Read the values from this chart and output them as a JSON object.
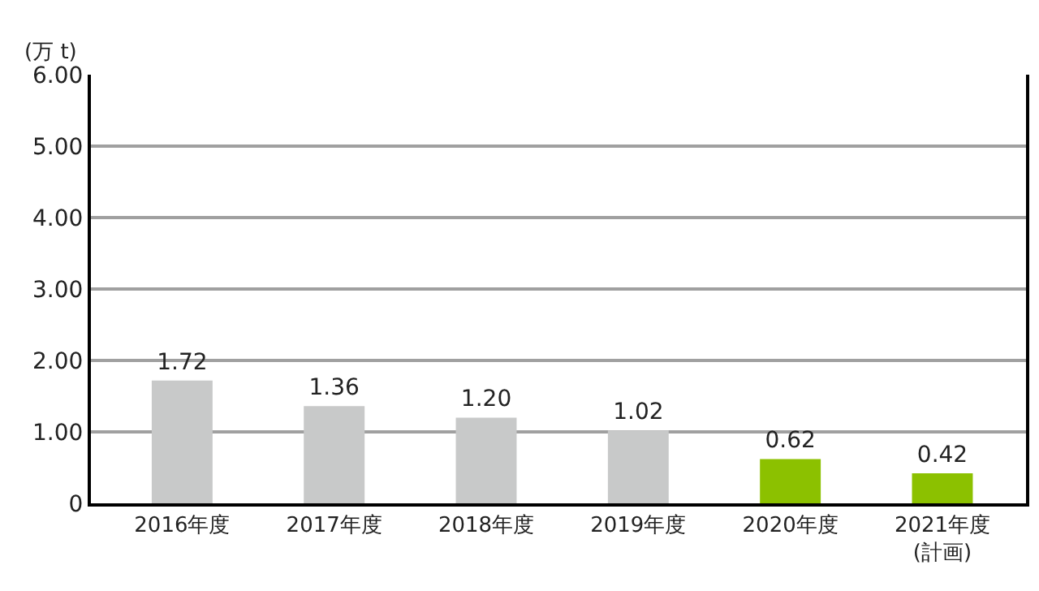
{
  "chart_data": {
    "type": "bar",
    "ylabel": "(万 t)",
    "categories": [
      "2016年度",
      "2017年度",
      "2018年度",
      "2019年度",
      "2020年度",
      "2021年度\n(計画)"
    ],
    "values": [
      1.72,
      1.36,
      1.2,
      1.02,
      0.62,
      0.42
    ],
    "value_labels": [
      "1.72",
      "1.36",
      "1.20",
      "1.02",
      "0.62",
      "0.42"
    ],
    "colors": [
      "#c8c9c9",
      "#c8c9c9",
      "#c8c9c9",
      "#c8c9c9",
      "#8cc100",
      "#8cc100"
    ],
    "ylim": [
      0,
      6
    ],
    "yticks": [
      0,
      {
        "value": 1,
        "label": "1.00"
      },
      {
        "value": 2,
        "label": "2.00"
      },
      {
        "value": 3,
        "label": "3.00"
      },
      {
        "value": 4,
        "label": "4.00"
      },
      {
        "value": 5,
        "label": "5.00"
      },
      {
        "value": 6,
        "label": "6.00"
      }
    ],
    "grid": "y"
  }
}
